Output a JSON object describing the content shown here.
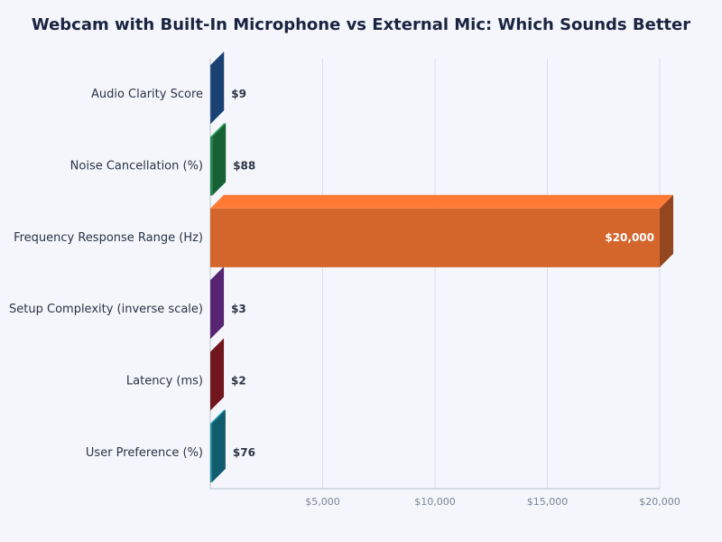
{
  "chart_data": {
    "type": "bar",
    "orientation": "horizontal",
    "title": "Webcam with Built-In Microphone vs External Mic: Which Sounds Better",
    "categories": [
      "Audio Clarity Score",
      "Noise Cancellation (%)",
      "Frequency Response Range (Hz)",
      "Setup Complexity (inverse scale)",
      "Latency (ms)",
      "User Preference (%)"
    ],
    "values": [
      9,
      88,
      20000,
      3,
      2,
      76
    ],
    "value_labels": [
      "$9",
      "$88",
      "$20,000",
      "$3",
      "$2",
      "$76"
    ],
    "colors": [
      "#245ea3",
      "#1f8a4c",
      "#d4662c",
      "#7b33a2",
      "#a01f28",
      "#17849a"
    ],
    "xlim": [
      0,
      20000
    ],
    "xticks": [
      {
        "value": 5000,
        "label": "$5,000"
      },
      {
        "value": 10000,
        "label": "$10,000"
      },
      {
        "value": 15000,
        "label": "$15,000"
      },
      {
        "value": 20000,
        "label": "$20,000"
      }
    ],
    "grid": true
  }
}
